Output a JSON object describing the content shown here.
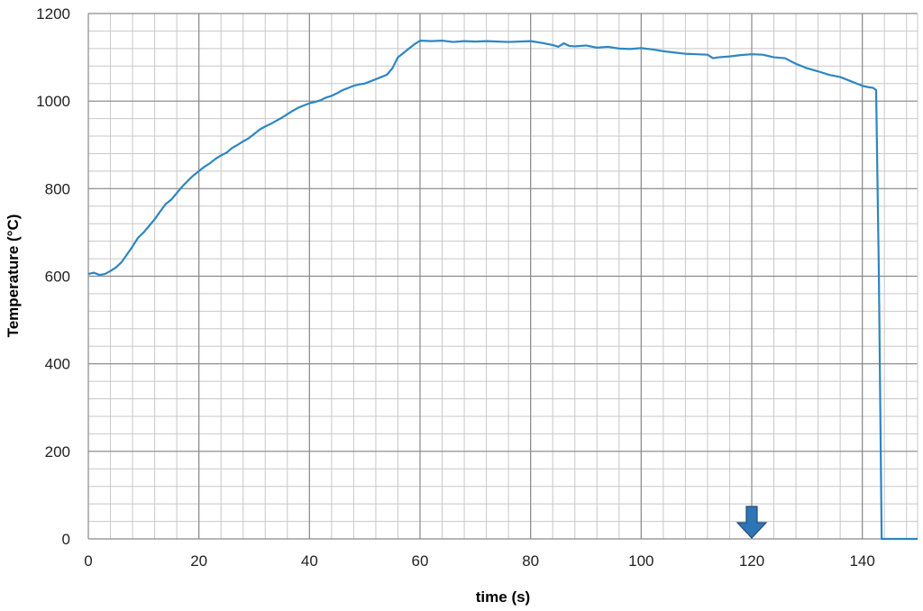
{
  "chart_data": {
    "type": "line",
    "title": "",
    "xlabel": "time (s)",
    "ylabel": "Temperature (°C)",
    "xlim": [
      0,
      150
    ],
    "ylim": [
      0,
      1200
    ],
    "x_ticks": [
      0,
      20,
      40,
      60,
      80,
      100,
      120,
      140
    ],
    "y_ticks": [
      0,
      200,
      400,
      600,
      800,
      1000,
      1200
    ],
    "x_tick_labels": [
      "0",
      "20",
      "40",
      "60",
      "80",
      "100",
      "120",
      "140"
    ],
    "y_tick_labels": [
      "0",
      "200",
      "400",
      "600",
      "800",
      "1000",
      "1200"
    ],
    "grid": "on",
    "minor_grid": {
      "x_step": 4,
      "y_step": 40
    },
    "colors": {
      "line": "#2e86c1",
      "grid_major": "#8a8a8a",
      "grid_minor": "#c8c8c8",
      "marker": "#2e75b6"
    },
    "marker": {
      "type": "down-arrow",
      "x": 120,
      "y": 0,
      "icon": "down-arrow-icon"
    },
    "series": [
      {
        "x": [
          0,
          1,
          2,
          3,
          4,
          5,
          6,
          7,
          8,
          9,
          10,
          11,
          12,
          13,
          14,
          15,
          16,
          17,
          18,
          19,
          20,
          21,
          22,
          23,
          24,
          25,
          26,
          27,
          28,
          29,
          30,
          31,
          32,
          33,
          34,
          35,
          36,
          37,
          38,
          39,
          40,
          41,
          42,
          43,
          44,
          45,
          46,
          47,
          48,
          49,
          50,
          51,
          52,
          53,
          54,
          55,
          56,
          57,
          58,
          59,
          60,
          62,
          64,
          66,
          68,
          70,
          72,
          74,
          76,
          78,
          80,
          82,
          84,
          85,
          86,
          87,
          88,
          90,
          92,
          94,
          96,
          98,
          100,
          102,
          104,
          106,
          108,
          110,
          112,
          113,
          114,
          116,
          118,
          120,
          122,
          124,
          126,
          128,
          130,
          132,
          134,
          136,
          138,
          139,
          140,
          141,
          142,
          142.5,
          143,
          143.5,
          144,
          150
        ],
        "y": [
          605,
          608,
          603,
          605,
          612,
          620,
          632,
          650,
          668,
          688,
          700,
          715,
          730,
          748,
          765,
          775,
          790,
          805,
          818,
          830,
          840,
          850,
          858,
          868,
          876,
          882,
          893,
          900,
          908,
          915,
          925,
          935,
          942,
          948,
          955,
          962,
          970,
          978,
          985,
          990,
          995,
          998,
          1002,
          1008,
          1012,
          1018,
          1025,
          1030,
          1035,
          1038,
          1040,
          1045,
          1050,
          1055,
          1060,
          1075,
          1100,
          1110,
          1120,
          1130,
          1138,
          1137,
          1138,
          1135,
          1137,
          1136,
          1137,
          1136,
          1135,
          1136,
          1137,
          1133,
          1128,
          1124,
          1132,
          1126,
          1125,
          1127,
          1122,
          1124,
          1120,
          1119,
          1121,
          1118,
          1114,
          1111,
          1108,
          1107,
          1106,
          1098,
          1100,
          1102,
          1105,
          1107,
          1106,
          1100,
          1098,
          1085,
          1075,
          1068,
          1060,
          1055,
          1045,
          1040,
          1035,
          1032,
          1030,
          1025,
          600,
          0,
          0,
          0
        ]
      }
    ]
  }
}
